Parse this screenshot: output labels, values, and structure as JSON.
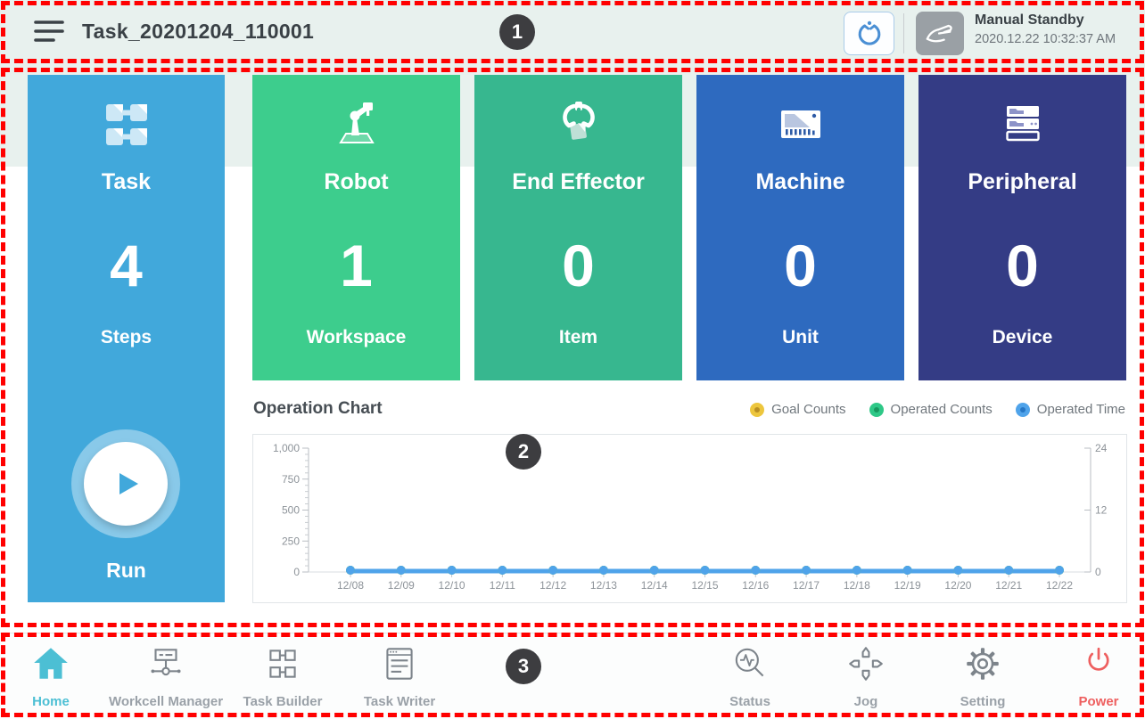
{
  "annotations": {
    "badges": [
      "1",
      "2",
      "3"
    ],
    "box_color": "#ff0000"
  },
  "header": {
    "menu_icon": "hamburger-icon",
    "title": "Task_20201204_110001",
    "gripper_button_icon": "gripper-icon",
    "mode_icon": "hand-mode-icon",
    "status_title": "Manual Standby",
    "status_time": "2020.12.22 10:32:37 AM"
  },
  "cards": [
    {
      "id": "task",
      "icon": "task-steps-icon",
      "label": "Task",
      "value": "4",
      "unit": "Steps",
      "color": "#41a8db",
      "run_label": "Run"
    },
    {
      "id": "robot",
      "icon": "robot-arm-icon",
      "label": "Robot",
      "value": "1",
      "unit": "Workspace",
      "color": "#3dcd8d"
    },
    {
      "id": "end-effector",
      "icon": "gripper-item-icon",
      "label": "End Effector",
      "value": "0",
      "unit": "Item",
      "color": "#37b78f"
    },
    {
      "id": "machine",
      "icon": "machine-icon",
      "label": "Machine",
      "value": "0",
      "unit": "Unit",
      "color": "#2e6abf"
    },
    {
      "id": "peripheral",
      "icon": "peripheral-server-icon",
      "label": "Peripheral",
      "value": "0",
      "unit": "Device",
      "color": "#343c85"
    }
  ],
  "chart": {
    "chart_data": {
      "type": "line",
      "title": "Operation Chart",
      "x": [
        "12/08",
        "12/09",
        "12/10",
        "12/11",
        "12/12",
        "12/13",
        "12/14",
        "12/15",
        "12/16",
        "12/17",
        "12/18",
        "12/19",
        "12/20",
        "12/21",
        "12/22"
      ],
      "series": [
        {
          "name": "Goal Counts",
          "axis": "left",
          "color": "#edc63d",
          "inner_color": "#b98f23",
          "values": [
            0,
            0,
            0,
            0,
            0,
            0,
            0,
            0,
            0,
            0,
            0,
            0,
            0,
            0,
            0
          ]
        },
        {
          "name": "Operated Counts",
          "axis": "left",
          "color": "#2ec887",
          "inner_color": "#17985f",
          "values": [
            0,
            0,
            0,
            0,
            0,
            0,
            0,
            0,
            0,
            0,
            0,
            0,
            0,
            0,
            0
          ]
        },
        {
          "name": "Operated Time",
          "axis": "right",
          "color": "#4fa3ea",
          "inner_color": "#2677c6",
          "values": [
            0,
            0,
            0,
            0,
            0,
            0,
            0,
            0,
            0,
            0,
            0,
            0,
            0,
            0,
            0
          ]
        }
      ],
      "left_axis": {
        "ticks": [
          "1,000",
          "750",
          "500",
          "250",
          "0"
        ],
        "range": [
          0,
          1000
        ]
      },
      "right_axis": {
        "ticks": [
          "24",
          "12",
          "0"
        ],
        "range": [
          0,
          24
        ]
      },
      "legend_position": "top-right",
      "grid": false
    }
  },
  "nav": {
    "items": [
      {
        "label": "Home",
        "icon": "home-icon",
        "active": true
      },
      {
        "label": "Workcell Manager",
        "icon": "workcell-manager-icon",
        "active": false
      },
      {
        "label": "Task Builder",
        "icon": "task-builder-icon",
        "active": false
      },
      {
        "label": "Task Writer",
        "icon": "task-writer-icon",
        "active": false
      },
      {
        "label": "Status",
        "icon": "status-icon",
        "active": false
      },
      {
        "label": "Jog",
        "icon": "jog-icon",
        "active": false
      },
      {
        "label": "Setting",
        "icon": "setting-icon",
        "active": false
      },
      {
        "label": "Power",
        "icon": "power-icon",
        "active": false
      }
    ]
  },
  "colors": {
    "topbar_bg": "#e8f1ee",
    "active_nav": "#4cbfd4",
    "power_red": "#ee5f5f",
    "annotation_red": "#ff0000",
    "chart_line_blue": "#4fa3ea"
  }
}
